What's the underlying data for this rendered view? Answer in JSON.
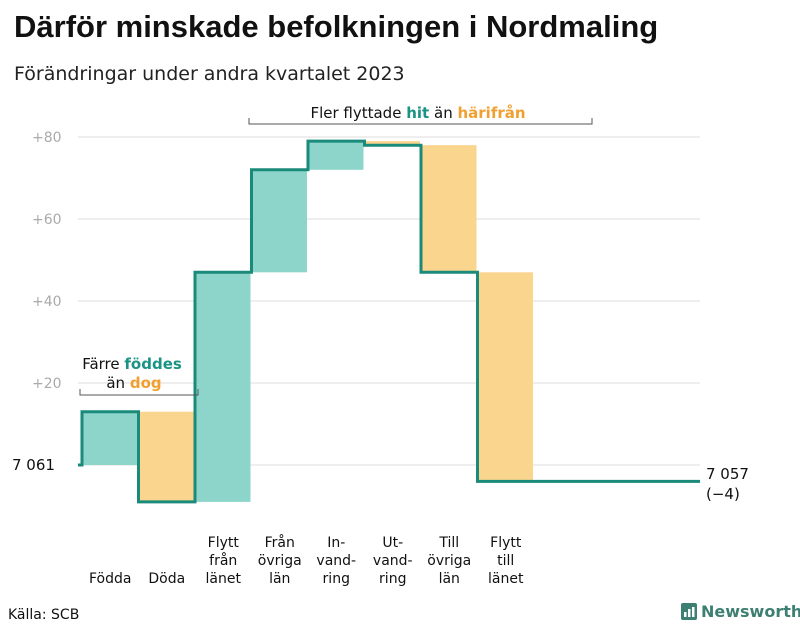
{
  "title": "Därför minskade befolkningen i Nordmaling",
  "subtitle": "Förändringar under andra kvartalet 2023",
  "source": "Källa: SCB",
  "brand": "Newsworthy",
  "chart_data": {
    "type": "waterfall",
    "title": "Därför minskade befolkningen i Nordmaling",
    "subtitle": "Förändringar under andra kvartalet 2023",
    "base_value": 7061,
    "start_label": "7  061",
    "end_value": 7057,
    "end_label": "7 057",
    "end_change_label": "(−4)",
    "ylim_relative": [
      -11,
      80
    ],
    "yticks": [
      {
        "value": 20,
        "label": "+20"
      },
      {
        "value": 40,
        "label": "+40"
      },
      {
        "value": 60,
        "label": "+60"
      },
      {
        "value": 80,
        "label": "+80"
      }
    ],
    "steps": [
      {
        "key": "fodda",
        "label_lines": [
          "Födda"
        ],
        "change": 13,
        "kind": "increase"
      },
      {
        "key": "doda",
        "label_lines": [
          "Döda"
        ],
        "change": -22,
        "kind": "decrease"
      },
      {
        "key": "flytt_fran_lanet",
        "label_lines": [
          "Flytt",
          "från",
          "länet"
        ],
        "change": 56,
        "kind": "increase"
      },
      {
        "key": "fran_ovriga_lan",
        "label_lines": [
          "Från",
          "övriga",
          "län"
        ],
        "change": 25,
        "kind": "increase"
      },
      {
        "key": "invandring",
        "label_lines": [
          "In-",
          "vand-",
          "ring"
        ],
        "change": 7,
        "kind": "increase"
      },
      {
        "key": "utvandring",
        "label_lines": [
          "Ut-",
          "vand-",
          "ring"
        ],
        "change": -1,
        "kind": "decrease"
      },
      {
        "key": "till_ovriga_lan",
        "label_lines": [
          "Till",
          "övriga",
          "län"
        ],
        "change": -31,
        "kind": "decrease"
      },
      {
        "key": "flytt_till_lanet",
        "label_lines": [
          "Flytt",
          "till",
          "länet"
        ],
        "change": -51,
        "kind": "decrease"
      }
    ],
    "colors": {
      "increase": "#8dd5cb",
      "decrease": "#fad58e",
      "line": "#1a8a7a",
      "grid": "#dddddd"
    },
    "annotations": {
      "births": {
        "pre": "Färre",
        "highlight1": "föddes",
        "mid": "än",
        "highlight2": "dog"
      },
      "migration": {
        "pre": "Fler flyttade",
        "highlight1": "hit",
        "mid": "än",
        "highlight2": "härifrån"
      }
    }
  }
}
